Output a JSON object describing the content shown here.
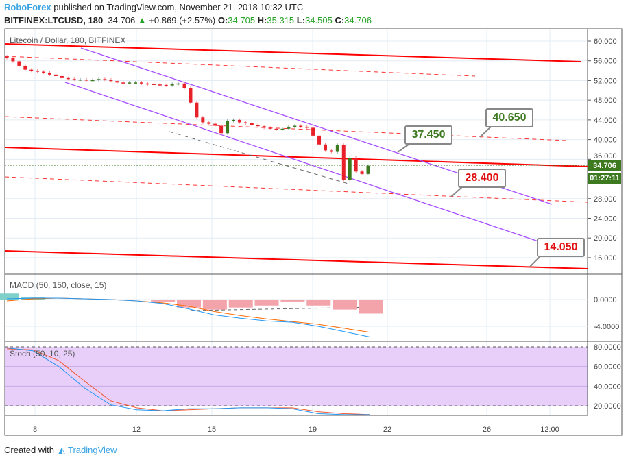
{
  "header": {
    "brand": "RoboForex",
    "published": " published on TradingView.com, November 21, 2018 10:32 UTC",
    "symbol": "BITFINEX:LTCUSD, 180",
    "last": "34.706",
    "arrow": "▲",
    "change": "+0.869 (+2.57%)",
    "o_label": "O:",
    "o": "34.705",
    "h_label": "H:",
    "h": "35.315",
    "l_label": "L:",
    "l": "34.505",
    "c_label": "C:",
    "c": "34.706"
  },
  "pane_titles": {
    "main": "Litecoin / Dollar, 180, BITFINEX",
    "macd": "MACD (50, 150, close, 15)",
    "stoch": "Stoch (50, 10, 25)"
  },
  "price_tag": "34.706",
  "countdown": "01:27:11",
  "callouts": [
    {
      "label": "37.450",
      "color": "#3d7a1f"
    },
    {
      "label": "40.650",
      "color": "#3d7a1f"
    },
    {
      "label": "28.400",
      "color": "#e01010"
    },
    {
      "label": "14.050",
      "color": "#e01010"
    }
  ],
  "footer": {
    "created": "Created with",
    "tv": "TradingView"
  },
  "chart_data": {
    "type": "candlestick",
    "price_axis": {
      "min": 12,
      "max": 62,
      "ticks": [
        "60.000",
        "56.000",
        "52.000",
        "48.000",
        "44.000",
        "40.000",
        "36.000",
        "28.000",
        "24.000",
        "20.000",
        "16.000"
      ]
    },
    "time_ticks": [
      "8",
      "12",
      "15",
      "19",
      "22",
      "26",
      "12:00"
    ],
    "closes": [
      56.6,
      55.9,
      55.0,
      54.2,
      54.0,
      53.8,
      53.6,
      53.2,
      52.9,
      52.5,
      52.3,
      52.2,
      52.2,
      52.1,
      52.1,
      52.3,
      52.2,
      51.9,
      51.6,
      51.5,
      51.6,
      51.6,
      51.4,
      51.3,
      51.2,
      51.1,
      51.0,
      51.3,
      51.4,
      50.5,
      47.5,
      44.5,
      43.5,
      43.2,
      42.8,
      41.3,
      43.8,
      44.0,
      43.5,
      43.3,
      43.0,
      42.7,
      42.4,
      42.2,
      42.1,
      42.2,
      42.6,
      42.8,
      42.6,
      42.4,
      40.8,
      39.0,
      37.8,
      37.5,
      38.9,
      31.8,
      36.3,
      33.5,
      33.0,
      34.706
    ],
    "macd": {
      "ticks": [
        "0.0000",
        "-4.0000"
      ],
      "macd": [
        0.1,
        0.2,
        0.2,
        0.1,
        0,
        -0.2,
        -0.6,
        -1.4,
        -2.3,
        -2.8,
        -3.2,
        -3.4,
        -4.0,
        -4.8,
        -5.6
      ],
      "signal": [
        -0.2,
        0.1,
        0.2,
        0.1,
        0,
        -0.2,
        -0.5,
        -1.0,
        -1.8,
        -2.4,
        -2.9,
        -3.3,
        -3.7,
        -4.3,
        -4.9
      ]
    },
    "stoch": {
      "ticks": [
        "80.0000",
        "60.0000",
        "40.0000",
        "20.0000"
      ],
      "k": [
        79,
        76,
        60,
        38,
        21,
        16,
        15,
        17,
        17,
        18,
        18,
        17,
        12,
        11,
        11
      ],
      "d": [
        78,
        77,
        66,
        45,
        25,
        18,
        15,
        16,
        17,
        18,
        18,
        18,
        14,
        12,
        11
      ]
    }
  }
}
